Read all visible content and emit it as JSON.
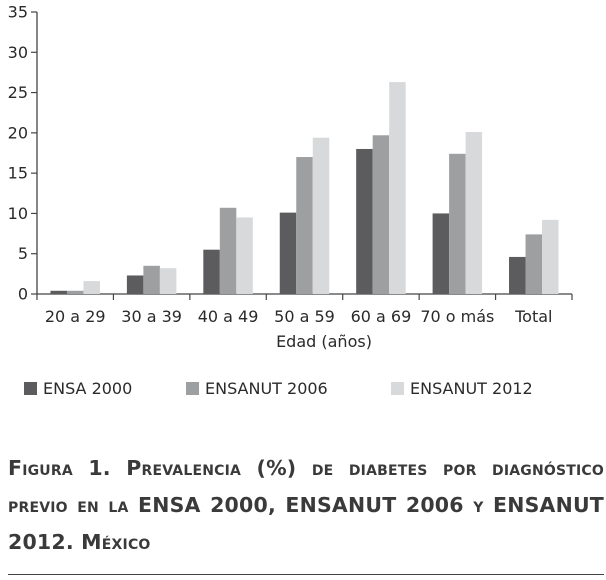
{
  "chart_data": {
    "type": "bar",
    "categories": [
      "20 a 29",
      "30 a 39",
      "40 a 49",
      "50 a 59",
      "60 a 69",
      "70 o más",
      "Total"
    ],
    "series": [
      {
        "name": "ENSA 2000",
        "color": "#5c5c5e",
        "values": [
          0.4,
          2.3,
          5.5,
          10.1,
          18.0,
          10.0,
          4.6
        ]
      },
      {
        "name": "ENSANUT 2006",
        "color": "#9e9fa1",
        "values": [
          0.4,
          3.5,
          10.7,
          17.0,
          19.7,
          17.4,
          7.4
        ]
      },
      {
        "name": "ENSANUT 2012",
        "color": "#d8d9db",
        "values": [
          1.6,
          3.2,
          9.5,
          19.4,
          26.3,
          20.1,
          9.2
        ]
      }
    ],
    "xlabel": "Edad (años)",
    "ylabel": "",
    "ylim": [
      0,
      35
    ],
    "yticks": [
      0,
      5,
      10,
      15,
      20,
      25,
      30,
      35
    ],
    "grid": false,
    "legend_position": "bottom"
  },
  "caption": "Figura 1. Prevalencia (%) de diabetes por diagnóstico previo en la ENSA 2000, ENSANUT 2006 y ENSANUT 2012. México"
}
